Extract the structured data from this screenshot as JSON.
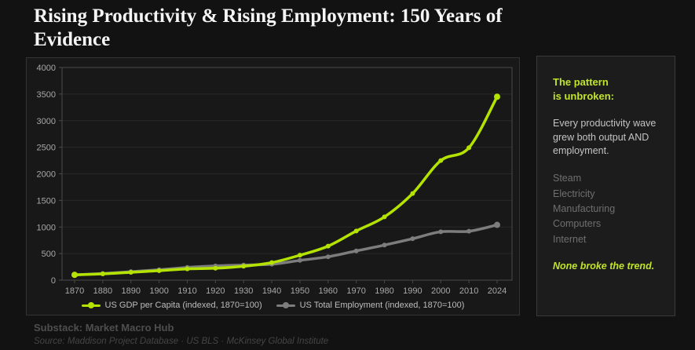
{
  "page": {
    "title": "Rising Productivity & Rising Employment: 150 Years of\nEvidence"
  },
  "chart_data": {
    "type": "line",
    "title": "",
    "categories": [
      "1870",
      "1880",
      "1890",
      "1900",
      "1910",
      "1920",
      "1930",
      "1940",
      "1950",
      "1960",
      "1970",
      "1980",
      "1990",
      "2000",
      "2010",
      "2024"
    ],
    "series": [
      {
        "name": "US GDP per Capita (indexed, 1870=100)",
        "color": "#b5e300",
        "values": [
          100,
          118,
          148,
          178,
          212,
          225,
          262,
          330,
          470,
          640,
          925,
          1190,
          1630,
          2250,
          2490,
          3450
        ]
      },
      {
        "name": "US Total Employment (indexed, 1870=100)",
        "color": "#7d7d7d",
        "values": [
          100,
          126,
          160,
          196,
          240,
          268,
          285,
          300,
          372,
          440,
          550,
          660,
          780,
          910,
          920,
          1040
        ]
      }
    ],
    "xlabel": "",
    "ylabel": "",
    "ylim": [
      0,
      4000
    ],
    "yticks": [
      0,
      500,
      1000,
      1500,
      2000,
      2500,
      3000,
      3500,
      4000
    ],
    "grid": true,
    "legend_position": "bottom"
  },
  "sidebar": {
    "heading": "The pattern\nis unbroken:",
    "body": "Every productivity wave grew both output AND employment.",
    "waves": [
      "Steam",
      "Electricity",
      "Manufacturing",
      "Computers",
      "Internet"
    ],
    "conclusion": "None broke the trend."
  },
  "footer": {
    "byline": "Substack: Market Macro Hub",
    "source": "Source: Maddison Project Database · US BLS · McKinsey Global Institute"
  },
  "colors": {
    "accent": "#b5e300",
    "accent_text": "#c0e42a",
    "gray_series": "#7d7d7d",
    "grid": "#282828",
    "spine": "#4a4a4a",
    "tick_label": "#a8a8a8"
  }
}
